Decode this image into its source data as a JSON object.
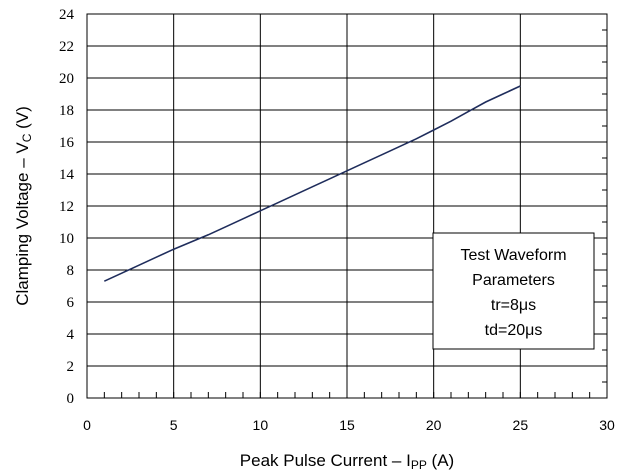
{
  "chart_data": {
    "type": "line",
    "xlabel": {
      "main": "Peak Pulse Current – I",
      "sub": "PP",
      "unit": " (A)"
    },
    "ylabel": {
      "main": "Clamping Voltage – V",
      "sub": "C",
      "unit": " (V)"
    },
    "xlim": [
      0,
      30
    ],
    "ylim": [
      0,
      24
    ],
    "x_ticks": [
      "0",
      "5",
      "10",
      "15",
      "20",
      "25",
      "30"
    ],
    "y_ticks": [
      "0",
      "2",
      "4",
      "6",
      "8",
      "10",
      "12",
      "14",
      "16",
      "18",
      "20",
      "22",
      "24"
    ],
    "grid": true,
    "series": [
      {
        "x": [
          1,
          2,
          3,
          4,
          5,
          6,
          7,
          8,
          9,
          10,
          11,
          12,
          13,
          14,
          15,
          16,
          17,
          18,
          19,
          20,
          21,
          22,
          23,
          24,
          25
        ],
        "y": [
          7.3,
          7.8,
          8.3,
          8.8,
          9.3,
          9.75,
          10.2,
          10.7,
          11.2,
          11.7,
          12.2,
          12.7,
          13.2,
          13.7,
          14.2,
          14.7,
          15.2,
          15.7,
          16.2,
          16.75,
          17.3,
          17.9,
          18.5,
          19.0,
          19.5
        ],
        "color": "#1f2d5c"
      }
    ],
    "legend_box": {
      "lines": [
        "Test Waveform",
        "Parameters",
        "tr=8μs",
        "td=20μs"
      ],
      "placement": "lower-right"
    }
  }
}
